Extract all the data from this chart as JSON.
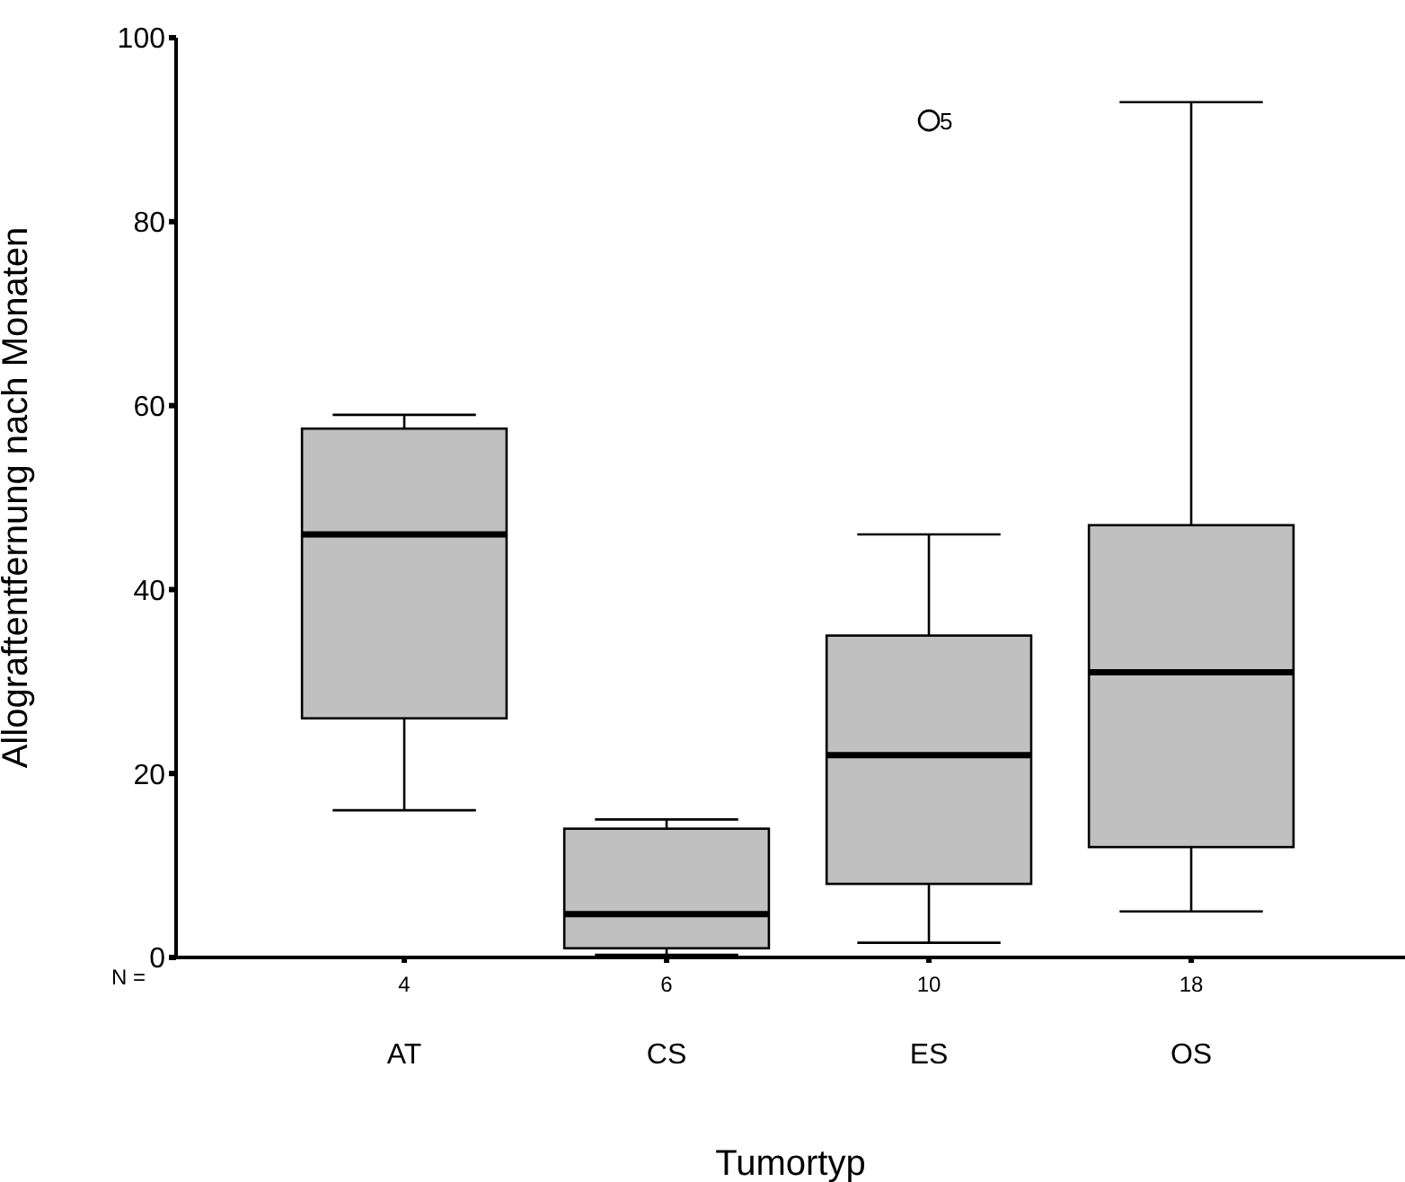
{
  "chart_data": {
    "type": "box",
    "xlabel": "Tumortyp",
    "ylabel": "Allograftentfernung nach Monaten",
    "categories": [
      "AT",
      "CS",
      "ES",
      "OS"
    ],
    "color": "#c0c0c0",
    "boxes": [
      {
        "low": 16,
        "q1": 26,
        "median": 46,
        "q3": 57.5,
        "high": 59
      },
      {
        "low": 0.3,
        "q1": 1,
        "median": 4.7,
        "q3": 14,
        "high": 15
      },
      {
        "low": 1.6,
        "q1": 8,
        "median": 22,
        "q3": 35,
        "high": 46,
        "outliers": [
          91
        ]
      },
      {
        "low": 5,
        "q1": 12,
        "median": 31,
        "q3": 47,
        "high": 93
      }
    ],
    "ylim": [
      0,
      100
    ],
    "yticks": [
      0,
      20,
      40,
      60,
      80,
      100
    ],
    "grid": false,
    "legend": false,
    "annotations": [
      "N =",
      {
        "text": "4",
        "x": "AT"
      },
      {
        "text": "6",
        "x": "CS"
      },
      {
        "text": "10",
        "x": "ES"
      },
      {
        "text": "18",
        "x": "OS"
      },
      "5"
    ]
  }
}
